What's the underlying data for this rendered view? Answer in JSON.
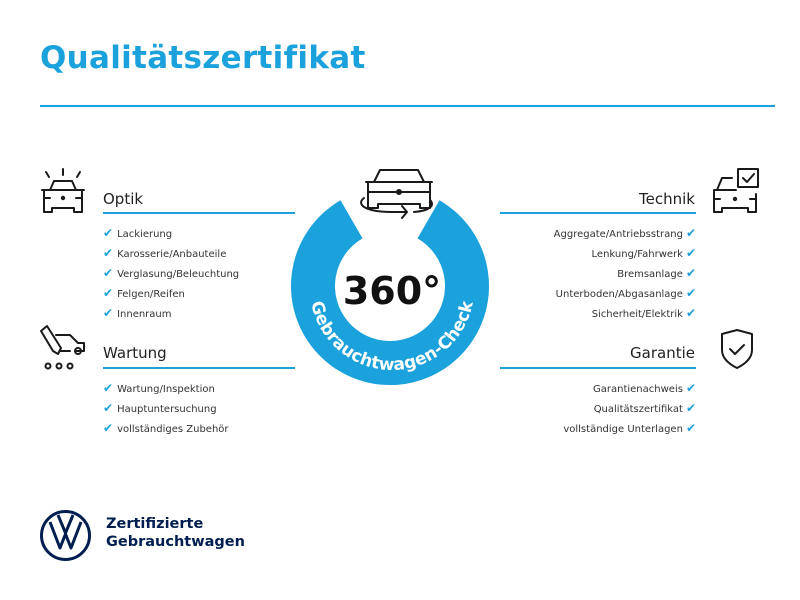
{
  "title": "Qualitätszertifikat",
  "badge": {
    "center_text": "360°",
    "ring_text": "Gebrauchtwagen-Check",
    "color": "#1ba1db"
  },
  "check_glyph": "✔",
  "sections": {
    "optik": {
      "heading": "Optik",
      "icon": "car-lights-icon",
      "items": [
        "Lackierung",
        "Karosserie/Anbauteile",
        "Verglasung/Beleuchtung",
        "Felgen/Reifen",
        "Innenraum"
      ]
    },
    "wartung": {
      "heading": "Wartung",
      "icon": "service-car-icon",
      "items": [
        "Wartung/Inspektion",
        "Hauptuntersuchung",
        "vollständiges Zubehör"
      ]
    },
    "technik": {
      "heading": "Technik",
      "icon": "car-checkbox-icon",
      "items": [
        "Aggregate/Antriebsstrang",
        "Lenkung/Fahrwerk",
        "Bremsanlage",
        "Unterboden/Abgasanlage",
        "Sicherheit/Elektrik"
      ]
    },
    "garantie": {
      "heading": "Garantie",
      "icon": "shield-check-icon",
      "items": [
        "Garantienachweis",
        "Qualitätszertifikat",
        "vollständige Unterlagen"
      ]
    }
  },
  "footer": {
    "line1": "Zertifizierte",
    "line2": "Gebrauchtwagen",
    "logo": "vw-logo",
    "brand_color": "#001e50"
  }
}
